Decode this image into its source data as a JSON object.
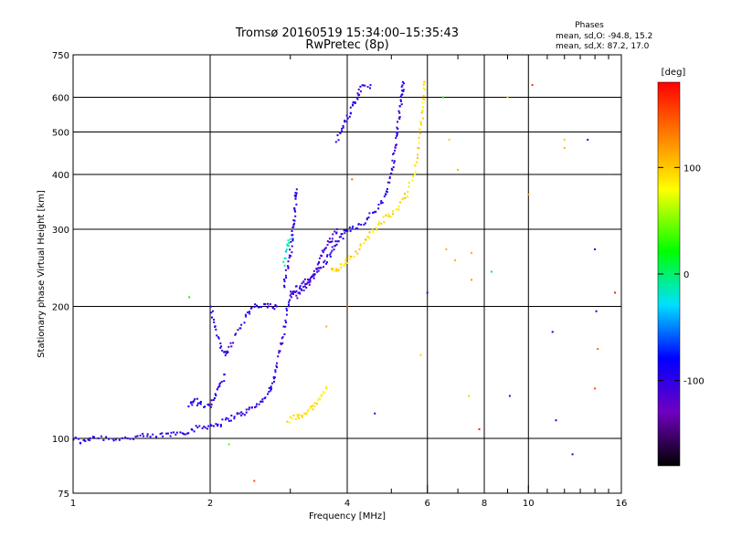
{
  "chart_data": {
    "type": "scatter",
    "title": "Tromsø 20160519 15:34:00–15:35:43",
    "subtitle": "RwPretec (8p)",
    "xlabel": "Frequency [MHz]",
    "ylabel": "Stationary phase Virtual Height [km]",
    "x_scale": "log",
    "y_scale": "log",
    "xlim": [
      1,
      16
    ],
    "ylim": [
      75,
      750
    ],
    "x_ticks": [
      1,
      2,
      4,
      6,
      8,
      10,
      16
    ],
    "x_tick_labels": [
      "1",
      "2",
      "4",
      "6",
      "8",
      "10",
      "16"
    ],
    "x_minor_ticks": [
      3,
      5,
      7,
      9,
      11,
      12,
      13,
      14,
      15
    ],
    "y_ticks": [
      75,
      100,
      200,
      300,
      400,
      500,
      600,
      750
    ],
    "y_tick_labels": [
      "75",
      "100",
      "200",
      "300",
      "400",
      "500",
      "600",
      "750"
    ],
    "x_grid": [
      2,
      4,
      6,
      8,
      10
    ],
    "y_grid": [
      100,
      200,
      300,
      400,
      500,
      600
    ],
    "grid": true,
    "annotation": {
      "heading": "Phases",
      "line1": "mean, sd,O: -94.8, 15.2",
      "line2": "mean, sd,X:  87.2, 17.0"
    },
    "colorbar": {
      "label": "[deg]",
      "min": -180,
      "max": 180,
      "ticks": [
        100,
        0,
        -100
      ],
      "tick_labels": [
        "100",
        "0",
        "-100"
      ]
    },
    "traces": [
      {
        "phase_deg": -100,
        "points": [
          [
            1.0,
            100
          ],
          [
            1.05,
            98
          ],
          [
            1.1,
            101
          ],
          [
            1.2,
            100
          ],
          [
            1.3,
            100
          ],
          [
            1.4,
            101
          ],
          [
            1.5,
            101
          ],
          [
            1.6,
            102
          ],
          [
            1.7,
            103
          ],
          [
            1.8,
            104
          ],
          [
            1.9,
            106
          ],
          [
            2.0,
            107
          ],
          [
            2.1,
            108
          ],
          [
            2.2,
            111
          ],
          [
            2.3,
            113
          ],
          [
            2.4,
            115
          ],
          [
            2.5,
            118
          ],
          [
            2.6,
            122
          ],
          [
            2.7,
            128
          ],
          [
            2.75,
            135
          ],
          [
            2.8,
            145
          ],
          [
            2.85,
            160
          ],
          [
            2.9,
            175
          ],
          [
            2.95,
            195
          ],
          [
            3.0,
            210
          ],
          [
            3.1,
            220
          ],
          [
            3.2,
            225
          ],
          [
            3.3,
            230
          ],
          [
            3.4,
            238
          ],
          [
            3.5,
            245
          ],
          [
            3.6,
            255
          ],
          [
            3.7,
            268
          ],
          [
            3.8,
            280
          ],
          [
            3.9,
            290
          ],
          [
            4.0,
            298
          ],
          [
            4.2,
            305
          ],
          [
            4.4,
            315
          ],
          [
            4.6,
            330
          ],
          [
            4.8,
            350
          ],
          [
            4.9,
            370
          ],
          [
            5.0,
            400
          ],
          [
            5.05,
            430
          ],
          [
            5.1,
            460
          ],
          [
            5.15,
            500
          ],
          [
            5.2,
            540
          ],
          [
            5.25,
            580
          ],
          [
            5.3,
            620
          ],
          [
            5.3,
            650
          ]
        ]
      },
      {
        "phase_deg": -100,
        "points": [
          [
            2.9,
            220
          ],
          [
            2.95,
            240
          ],
          [
            3.0,
            260
          ],
          [
            3.02,
            280
          ],
          [
            3.04,
            300
          ],
          [
            3.06,
            320
          ],
          [
            3.08,
            350
          ],
          [
            3.1,
            370
          ]
        ]
      },
      {
        "phase_deg": -100,
        "points": [
          [
            2.0,
            200
          ],
          [
            2.05,
            180
          ],
          [
            2.1,
            165
          ],
          [
            2.15,
            155
          ],
          [
            2.2,
            160
          ],
          [
            2.3,
            175
          ],
          [
            2.4,
            190
          ],
          [
            2.5,
            200
          ],
          [
            2.6,
            200
          ],
          [
            2.7,
            200
          ],
          [
            2.8,
            200
          ]
        ]
      },
      {
        "phase_deg": -100,
        "points": [
          [
            3.8,
            480
          ],
          [
            3.9,
            510
          ],
          [
            4.0,
            540
          ],
          [
            4.1,
            570
          ],
          [
            4.2,
            600
          ],
          [
            4.3,
            630
          ],
          [
            4.5,
            640
          ]
        ]
      },
      {
        "phase_deg": -95,
        "points": [
          [
            1.8,
            120
          ],
          [
            1.85,
            122
          ],
          [
            1.9,
            120
          ],
          [
            2.0,
            118
          ],
          [
            2.05,
            125
          ],
          [
            2.1,
            130
          ],
          [
            2.15,
            140
          ]
        ]
      },
      {
        "phase_deg": -110,
        "points": [
          [
            3.0,
            215
          ],
          [
            3.1,
            212
          ],
          [
            3.2,
            218
          ],
          [
            3.3,
            225
          ],
          [
            3.4,
            240
          ],
          [
            3.5,
            260
          ],
          [
            3.6,
            275
          ],
          [
            3.7,
            285
          ],
          [
            3.8,
            300
          ]
        ]
      },
      {
        "phase_deg": 95,
        "points": [
          [
            3.7,
            245
          ],
          [
            3.8,
            242
          ],
          [
            3.9,
            248
          ],
          [
            4.0,
            255
          ],
          [
            4.2,
            268
          ],
          [
            4.4,
            285
          ],
          [
            4.6,
            300
          ],
          [
            4.8,
            315
          ],
          [
            5.0,
            325
          ],
          [
            5.2,
            340
          ],
          [
            5.4,
            360
          ],
          [
            5.6,
            400
          ],
          [
            5.7,
            450
          ],
          [
            5.8,
            500
          ],
          [
            5.85,
            550
          ],
          [
            5.9,
            600
          ],
          [
            5.9,
            650
          ]
        ]
      },
      {
        "phase_deg": 90,
        "points": [
          [
            2.95,
            110
          ],
          [
            3.1,
            112
          ],
          [
            3.2,
            113
          ],
          [
            3.3,
            116
          ],
          [
            3.4,
            120
          ],
          [
            3.5,
            125
          ],
          [
            3.6,
            130
          ]
        ]
      },
      {
        "phase_deg": -20,
        "points": [
          [
            2.9,
            250
          ],
          [
            2.95,
            270
          ],
          [
            3.0,
            285
          ]
        ]
      }
    ],
    "scattered_points": [
      {
        "x": 6.5,
        "y": 600,
        "phase_deg": 20
      },
      {
        "x": 6.7,
        "y": 480,
        "phase_deg": 100
      },
      {
        "x": 7.0,
        "y": 410,
        "phase_deg": 110
      },
      {
        "x": 6.6,
        "y": 270,
        "phase_deg": 110
      },
      {
        "x": 6.9,
        "y": 255,
        "phase_deg": 110
      },
      {
        "x": 7.5,
        "y": 265,
        "phase_deg": 110
      },
      {
        "x": 7.5,
        "y": 230,
        "phase_deg": 120
      },
      {
        "x": 7.4,
        "y": 125,
        "phase_deg": 60
      },
      {
        "x": 7.8,
        "y": 105,
        "phase_deg": 170
      },
      {
        "x": 6.0,
        "y": 215,
        "phase_deg": -100
      },
      {
        "x": 8.3,
        "y": 240,
        "phase_deg": 0
      },
      {
        "x": 9.0,
        "y": 600,
        "phase_deg": 100
      },
      {
        "x": 10.2,
        "y": 640,
        "phase_deg": 160
      },
      {
        "x": 10.0,
        "y": 360,
        "phase_deg": 120
      },
      {
        "x": 9.1,
        "y": 125,
        "phase_deg": -100
      },
      {
        "x": 11.3,
        "y": 175,
        "phase_deg": -80
      },
      {
        "x": 11.5,
        "y": 110,
        "phase_deg": -80
      },
      {
        "x": 12.0,
        "y": 480,
        "phase_deg": 100
      },
      {
        "x": 12.0,
        "y": 460,
        "phase_deg": 110
      },
      {
        "x": 12.5,
        "y": 92,
        "phase_deg": -100
      },
      {
        "x": 13.5,
        "y": 480,
        "phase_deg": -100
      },
      {
        "x": 14.0,
        "y": 130,
        "phase_deg": 150
      },
      {
        "x": 14.2,
        "y": 160,
        "phase_deg": 140
      },
      {
        "x": 14.0,
        "y": 270,
        "phase_deg": -80
      },
      {
        "x": 15.5,
        "y": 215,
        "phase_deg": 170
      },
      {
        "x": 14.1,
        "y": 195,
        "phase_deg": -90
      },
      {
        "x": 1.8,
        "y": 210,
        "phase_deg": 20
      },
      {
        "x": 2.0,
        "y": 120,
        "phase_deg": 170
      },
      {
        "x": 2.5,
        "y": 80,
        "phase_deg": 150
      },
      {
        "x": 2.2,
        "y": 97,
        "phase_deg": 40
      },
      {
        "x": 4.0,
        "y": 200,
        "phase_deg": 150
      },
      {
        "x": 4.6,
        "y": 114,
        "phase_deg": -100
      },
      {
        "x": 5.8,
        "y": 155,
        "phase_deg": 100
      },
      {
        "x": 4.1,
        "y": 390,
        "phase_deg": 140
      },
      {
        "x": 3.6,
        "y": 180,
        "phase_deg": 110
      }
    ]
  }
}
